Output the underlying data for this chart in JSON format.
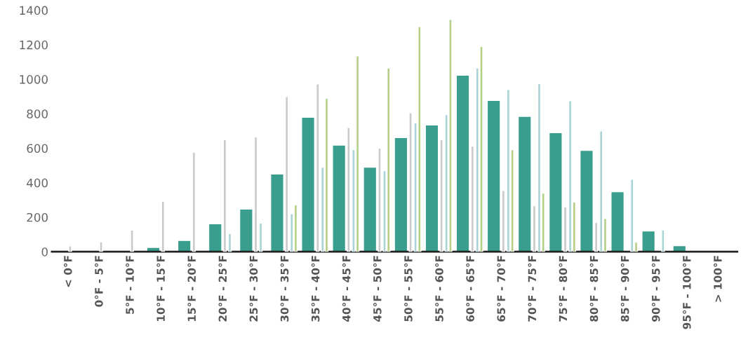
{
  "chart_data": {
    "type": "bar",
    "categories": [
      "< 0°F",
      "0°F - 5°F",
      "5°F - 10°F",
      "10°F - 15°F",
      "15°F - 20°F",
      "20°F - 25°F",
      "25°F - 30°F",
      "30°F - 35°F",
      "35°F - 40°F",
      "40°F - 45°F",
      "45°F - 50°F",
      "50°F - 55°F",
      "55°F - 60°F",
      "60°F - 65°F",
      "65°F - 70°F",
      "70°F - 75°F",
      "75°F - 80°F",
      "80°F - 85°F",
      "85°F - 90°F",
      "90°F - 95°F",
      "95°F - 100°F",
      "> 100°F"
    ],
    "series": [
      {
        "color": "#3a9e8e",
        "values": [
          null,
          null,
          3,
          25,
          65,
          162,
          247,
          450,
          780,
          618,
          490,
          662,
          735,
          1023,
          877,
          785,
          690,
          588,
          348,
          120,
          35,
          null
        ]
      },
      {
        "color": "#c9c9c9",
        "values": [
          33,
          57,
          125,
          292,
          575,
          650,
          665,
          900,
          973,
          720,
          600,
          805,
          650,
          612,
          355,
          267,
          260,
          170,
          null,
          null,
          null,
          null
        ]
      },
      {
        "color": "#a9d3d6",
        "values": [
          null,
          null,
          null,
          null,
          null,
          105,
          166,
          220,
          490,
          592,
          470,
          747,
          795,
          1065,
          940,
          975,
          875,
          700,
          420,
          125,
          null,
          null
        ]
      },
      {
        "color": "#b3cf86",
        "values": [
          null,
          null,
          null,
          null,
          null,
          null,
          null,
          272,
          890,
          1135,
          1065,
          1305,
          1347,
          1190,
          592,
          340,
          288,
          192,
          55,
          null,
          null,
          null
        ]
      }
    ],
    "ylim": [
      0,
      1400
    ],
    "yticks": [
      0,
      200,
      400,
      600,
      800,
      1000,
      1200,
      1400
    ],
    "grid": false,
    "legend": false
  }
}
